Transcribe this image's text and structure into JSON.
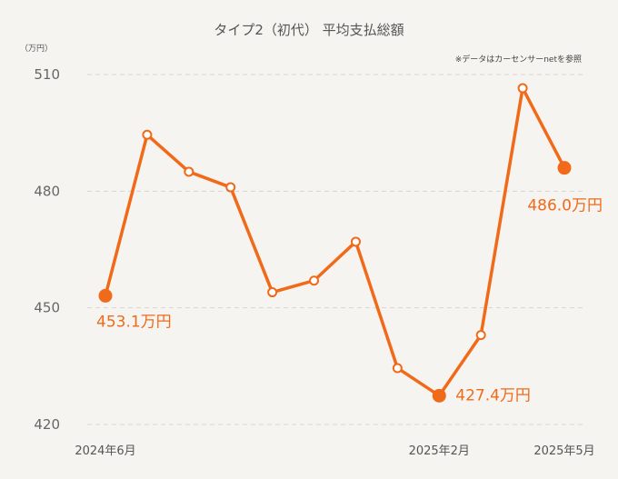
{
  "chart_data": {
    "type": "line",
    "title": "タイプ2（初代） 平均支払総額",
    "unit_label": "（万円）",
    "source_note": "※データはカーセンサーnetを参照",
    "ylim": [
      420,
      510
    ],
    "y_ticks": [
      "510",
      "480",
      "450",
      "420"
    ],
    "y_tick_values": [
      510,
      480,
      450,
      420
    ],
    "grid": true,
    "x_tick_labels": [
      {
        "index": 0,
        "label": "2024年6月"
      },
      {
        "index": 8,
        "label": "2025年2月"
      },
      {
        "index": 11,
        "label": "2025年5月"
      }
    ],
    "series": [
      {
        "x": [
          "2024年6月",
          "2024年7月",
          "2024年8月",
          "2024年9月",
          "2024年10月",
          "2024年11月",
          "2024年12月",
          "2025年1月",
          "2025年2月",
          "2025年3月",
          "2025年4月",
          "2025年5月"
        ],
        "values": [
          453.1,
          494.5,
          485.0,
          481.0,
          454.0,
          457.0,
          467.0,
          434.5,
          427.4,
          443.0,
          506.5,
          486.0
        ],
        "color": "#f06a1a"
      }
    ],
    "annotations": [
      {
        "index": 0,
        "label": "453.1万円"
      },
      {
        "index": 8,
        "label": "427.4万円"
      },
      {
        "index": 11,
        "label": "486.0万円"
      }
    ]
  }
}
